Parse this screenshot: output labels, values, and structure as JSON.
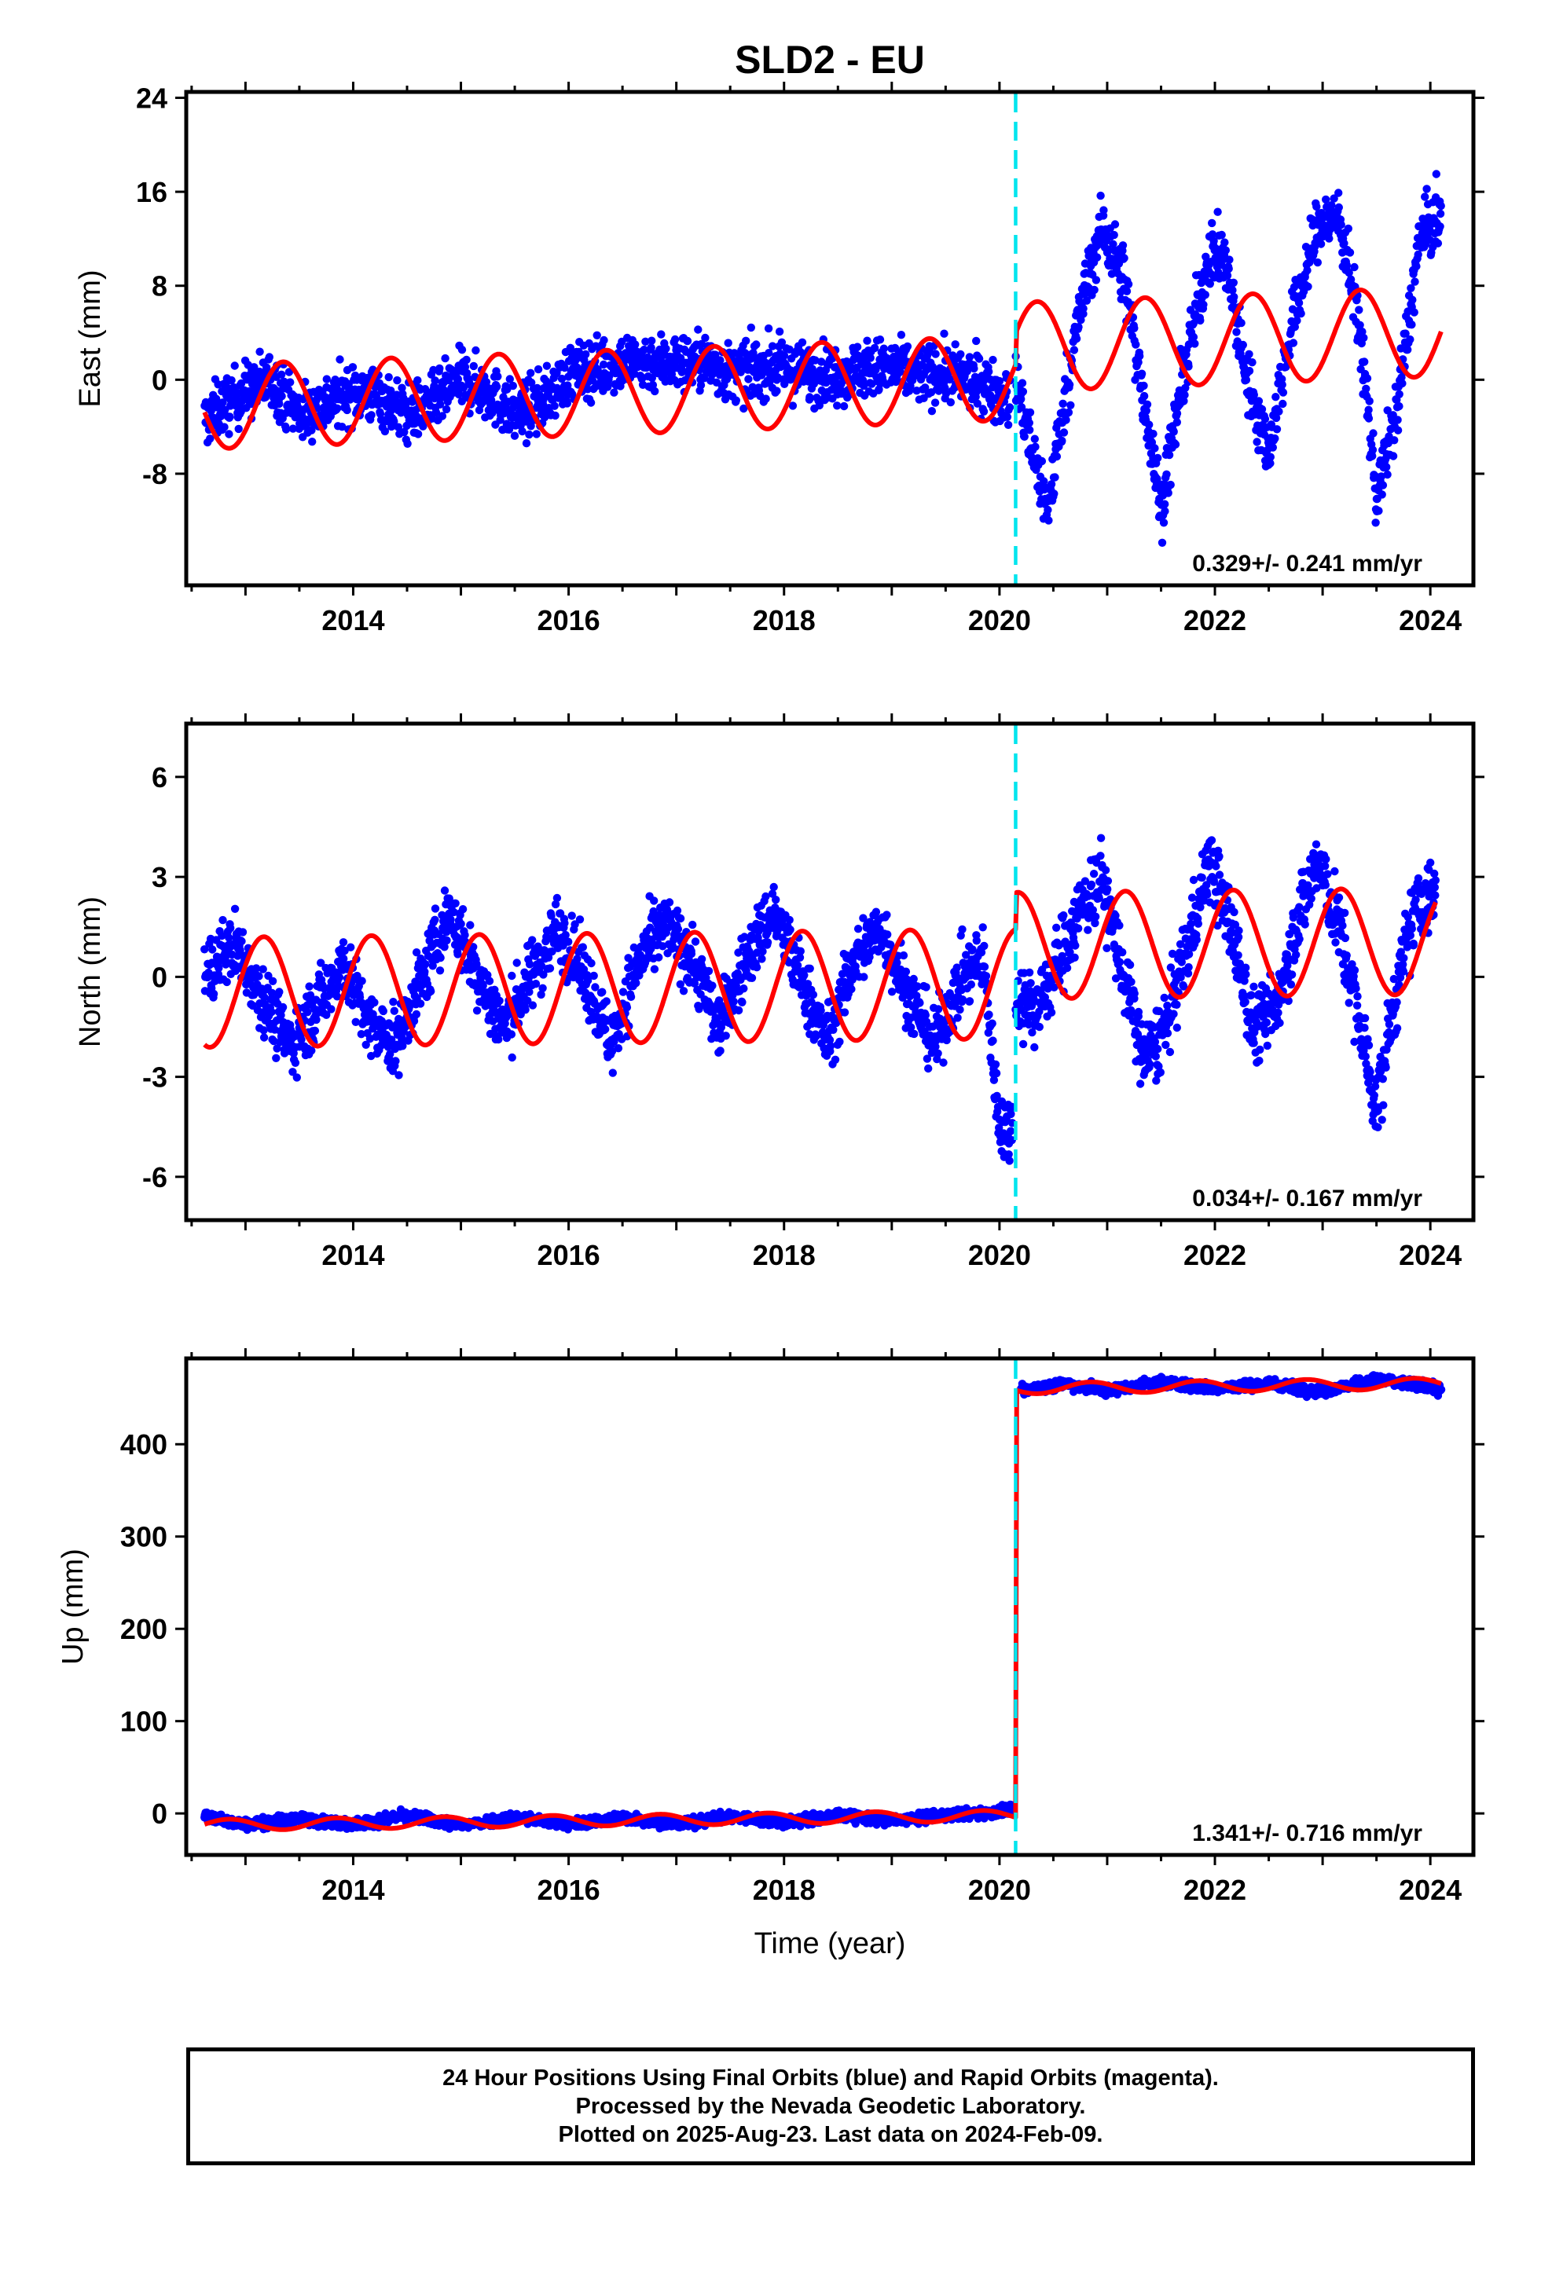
{
  "title": "SLD2 - EU",
  "footer": {
    "line1": "24 Hour Positions Using Final Orbits (blue) and Rapid Orbits (magenta).",
    "line2": "Processed by the Nevada Geodetic Laboratory.",
    "line3": "Plotted on 2025-Aug-23. Last data on 2024-Feb-09."
  },
  "colors": {
    "data": "#0000ff",
    "model": "#ff0000",
    "break": "#00e5ee",
    "axis": "#000000"
  },
  "chart_data": [
    {
      "type": "scatter",
      "panel": "east",
      "ylabel": "East (mm)",
      "xlabel": "",
      "xlim": [
        2012.45,
        2024.4
      ],
      "ylim": [
        -17.5,
        24.5
      ],
      "xticks": [
        2014,
        2016,
        2018,
        2020,
        2022,
        2024
      ],
      "yticks": [
        -8,
        0,
        8,
        16,
        24
      ],
      "break_year": 2020.15,
      "rate_label": "0.329+/- 0.241 mm/yr",
      "model": {
        "offset_before": -1.2,
        "offset_after": 3.4,
        "trend": 0.33,
        "annual_amp_before": 3.6,
        "annual_amp_after": 3.8,
        "annual_phase_year": 2013.1
      },
      "data_segments": [
        {
          "x": [
            2012.62,
            2012.75,
            2013.0,
            2013.25,
            2013.5,
            2013.75,
            2014.0,
            2014.25,
            2014.5,
            2014.75,
            2015.0,
            2015.25,
            2015.5,
            2015.75,
            2016.0,
            2016.25,
            2016.5,
            2016.75,
            2017.0,
            2017.25,
            2017.5,
            2017.75,
            2018.0,
            2018.25,
            2018.5,
            2018.75,
            2019.0,
            2019.25,
            2019.5,
            2019.75,
            2020.0,
            2020.1
          ],
          "y": [
            -3.5,
            -2.5,
            -1.0,
            0.0,
            -3.0,
            -2.0,
            -1.0,
            -1.5,
            -3.0,
            -2.0,
            0.0,
            -1.0,
            -3.0,
            -2.0,
            0.5,
            1.0,
            1.5,
            1.5,
            1.5,
            1.5,
            0.5,
            1.0,
            1.0,
            0.5,
            0.5,
            1.0,
            1.0,
            0.5,
            0.5,
            0.0,
            -1.0,
            -2.0
          ],
          "spread": 2.2
        },
        {
          "x": [
            2020.15,
            2020.3,
            2020.45,
            2020.6,
            2020.75,
            2020.95,
            2021.15,
            2021.35,
            2021.5,
            2021.7,
            2021.95,
            2022.1,
            2022.3,
            2022.5,
            2022.7,
            2022.95,
            2023.15,
            2023.35,
            2023.5,
            2023.7,
            2023.9,
            2024.1
          ],
          "y": [
            0.0,
            -6.0,
            -11.0,
            -2.0,
            6.0,
            13.0,
            9.0,
            -2.0,
            -11.0,
            0.0,
            11.0,
            10.0,
            0.0,
            -6.0,
            4.0,
            13.0,
            14.0,
            4.0,
            -10.0,
            -2.0,
            12.0,
            14.0
          ],
          "spread": 2.4
        }
      ]
    },
    {
      "type": "scatter",
      "panel": "north",
      "ylabel": "North (mm)",
      "xlabel": "",
      "xlim": [
        2012.45,
        2024.4
      ],
      "ylim": [
        -7.3,
        7.6
      ],
      "xticks": [
        2014,
        2016,
        2018,
        2020,
        2022,
        2024
      ],
      "yticks": [
        -6,
        -3,
        0,
        3,
        6
      ],
      "break_year": 2020.15,
      "rate_label": "0.034+/- 0.167 mm/yr",
      "model": {
        "offset_before": -0.35,
        "offset_after": 1.0,
        "trend": 0.034,
        "annual_amp_before": 1.65,
        "annual_amp_after": 1.6,
        "annual_phase_year": 2012.92
      },
      "data_segments": [
        {
          "x": [
            2012.62,
            2012.9,
            2013.15,
            2013.4,
            2013.65,
            2013.9,
            2014.15,
            2014.4,
            2014.65,
            2014.9,
            2015.15,
            2015.4,
            2015.65,
            2015.9,
            2016.15,
            2016.4,
            2016.65,
            2016.9,
            2017.15,
            2017.4,
            2017.65,
            2017.9,
            2018.15,
            2018.4,
            2018.65,
            2018.9,
            2019.15,
            2019.4,
            2019.65,
            2019.85,
            2020.0,
            2020.12
          ],
          "y": [
            0.0,
            1.0,
            -0.5,
            -2.0,
            -1.0,
            0.5,
            -1.5,
            -2.0,
            0.0,
            2.0,
            0.0,
            -1.5,
            0.0,
            1.5,
            0.0,
            -2.0,
            0.5,
            1.5,
            0.5,
            -1.5,
            0.5,
            2.0,
            0.0,
            -2.0,
            0.5,
            1.5,
            -0.5,
            -2.0,
            0.0,
            0.5,
            -4.5,
            -4.5
          ],
          "spread": 0.9
        },
        {
          "x": [
            2020.15,
            2020.35,
            2020.55,
            2020.75,
            2020.95,
            2021.15,
            2021.35,
            2021.55,
            2021.75,
            2021.95,
            2022.15,
            2022.35,
            2022.55,
            2022.75,
            2022.95,
            2023.15,
            2023.35,
            2023.5,
            2023.65,
            2023.85,
            2024.05
          ],
          "y": [
            -0.5,
            -1.0,
            0.5,
            2.0,
            3.0,
            0.0,
            -2.5,
            -1.5,
            1.0,
            3.5,
            1.5,
            -1.5,
            -1.0,
            1.5,
            3.5,
            1.5,
            -1.5,
            -4.0,
            -1.0,
            2.0,
            2.5
          ],
          "spread": 1.0
        }
      ]
    },
    {
      "type": "scatter",
      "panel": "up",
      "ylabel": "Up (mm)",
      "xlabel": "Time (year)",
      "xlim": [
        2012.45,
        2024.4
      ],
      "ylim": [
        -45,
        493
      ],
      "xticks": [
        2014,
        2016,
        2018,
        2020,
        2022,
        2024
      ],
      "yticks": [
        0,
        100,
        200,
        300,
        400
      ],
      "break_year": 2020.15,
      "rate_label": "1.341+/- 0.716 mm/yr",
      "model": {
        "offset_before": -8,
        "offset_after": 463,
        "trend": 1.34,
        "annual_amp_before": 6,
        "annual_amp_after": 6,
        "annual_phase_year": 2012.6
      },
      "data_segments": [
        {
          "x": [
            2012.62,
            2013.0,
            2013.5,
            2014.0,
            2014.5,
            2015.0,
            2015.5,
            2016.0,
            2016.5,
            2017.0,
            2017.5,
            2018.0,
            2018.5,
            2019.0,
            2019.5,
            2020.0,
            2020.12
          ],
          "y": [
            -3,
            -12,
            -6,
            -12,
            -2,
            -13,
            -4,
            -12,
            -4,
            -12,
            -3,
            -10,
            -2,
            -8,
            -2,
            2,
            5
          ],
          "spread": 5
        },
        {
          "x": [
            2020.2,
            2020.6,
            2021.0,
            2021.5,
            2022.0,
            2022.5,
            2023.0,
            2023.5,
            2024.0,
            2024.1
          ],
          "y": [
            458,
            466,
            458,
            468,
            460,
            466,
            457,
            470,
            462,
            458
          ],
          "spread": 5
        }
      ]
    }
  ]
}
